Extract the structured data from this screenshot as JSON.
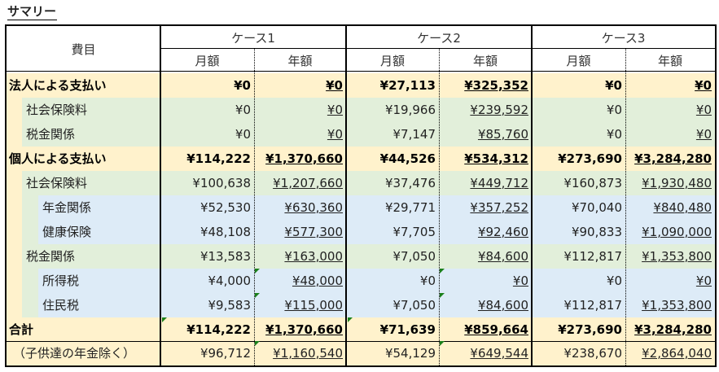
{
  "title": "サマリー",
  "header": {
    "item_label": "費目",
    "cases": [
      "ケース1",
      "ケース2",
      "ケース3"
    ],
    "monthly": "月額",
    "yearly": "年額"
  },
  "colors": {
    "orange": "#fff2cc",
    "green": "#e2efda",
    "blue": "#ddebf7",
    "comment_marker": "#1a7f1a"
  },
  "rows": [
    {
      "label": "法人による支払い",
      "level": 0,
      "bold": true,
      "values": [
        "¥0",
        "¥0",
        "¥27,113",
        "¥325,352",
        "¥0",
        "¥0"
      ]
    },
    {
      "label": "社会保険料",
      "level": 1,
      "bold": false,
      "values": [
        "¥0",
        "¥0",
        "¥19,966",
        "¥239,592",
        "¥0",
        "¥0"
      ]
    },
    {
      "label": "税金関係",
      "level": 1,
      "bold": false,
      "values": [
        "¥0",
        "¥0",
        "¥7,147",
        "¥85,760",
        "¥0",
        "¥0"
      ]
    },
    {
      "label": "個人による支払い",
      "level": 0,
      "bold": true,
      "values": [
        "¥114,222",
        "¥1,370,660",
        "¥44,526",
        "¥534,312",
        "¥273,690",
        "¥3,284,280"
      ]
    },
    {
      "label": "社会保険料",
      "level": 1,
      "bold": false,
      "values": [
        "¥100,638",
        "¥1,207,660",
        "¥37,476",
        "¥449,712",
        "¥160,873",
        "¥1,930,480"
      ]
    },
    {
      "label": "年金関係",
      "level": 2,
      "bold": false,
      "values": [
        "¥52,530",
        "¥630,360",
        "¥29,771",
        "¥357,252",
        "¥70,040",
        "¥840,480"
      ]
    },
    {
      "label": "健康保険",
      "level": 2,
      "bold": false,
      "values": [
        "¥48,108",
        "¥577,300",
        "¥7,705",
        "¥92,460",
        "¥90,833",
        "¥1,090,000"
      ]
    },
    {
      "label": "税金関係",
      "level": 1,
      "bold": false,
      "values": [
        "¥13,583",
        "¥163,000",
        "¥7,050",
        "¥84,600",
        "¥112,817",
        "¥1,353,800"
      ]
    },
    {
      "label": "所得税",
      "level": 2,
      "bold": false,
      "values": [
        "¥4,000",
        "¥48,000",
        "¥0",
        "¥0",
        "¥0",
        "¥0"
      ]
    },
    {
      "label": "住民税",
      "level": 2,
      "bold": false,
      "values": [
        "¥9,583",
        "¥115,000",
        "¥7,050",
        "¥84,600",
        "¥112,817",
        "¥1,353,800"
      ]
    },
    {
      "label": "合計",
      "level": 0,
      "bold": true,
      "values": [
        "¥114,222",
        "¥1,370,660",
        "¥71,639",
        "¥859,664",
        "¥273,690",
        "¥3,284,280"
      ]
    },
    {
      "label": "（子供達の年金除く）",
      "level": 0,
      "bold": false,
      "values": [
        "¥96,712",
        "¥1,160,540",
        "¥54,129",
        "¥649,544",
        "¥238,670",
        "¥2,864,040"
      ]
    }
  ]
}
